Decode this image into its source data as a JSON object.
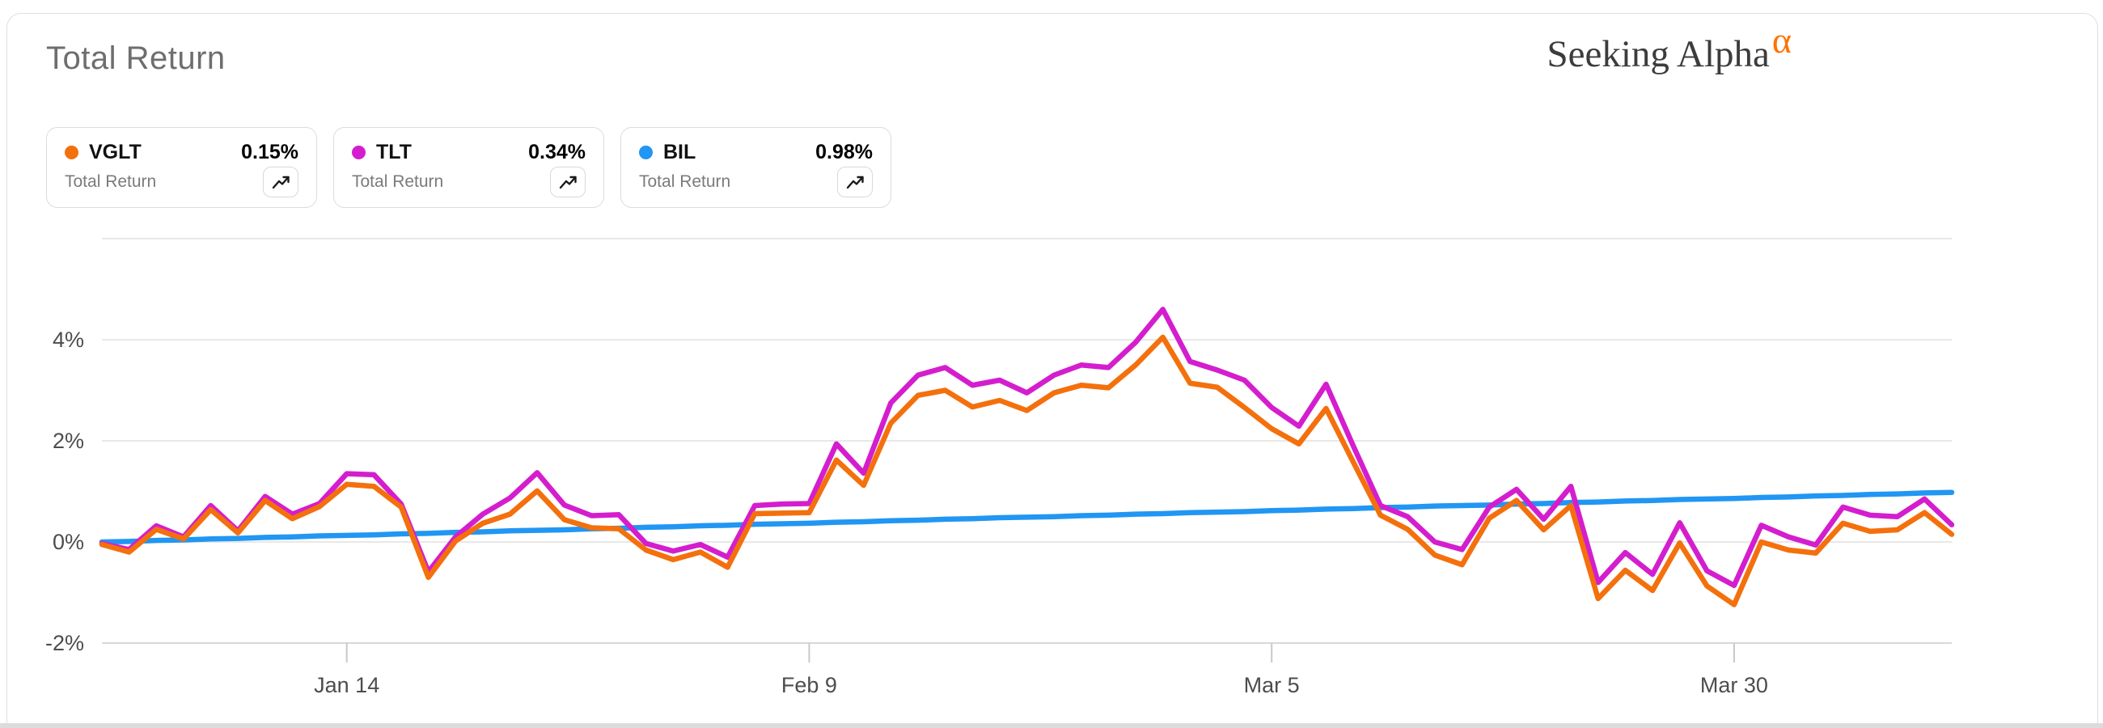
{
  "page": {
    "title": "Total Return"
  },
  "brand": {
    "name": "Seeking Alpha",
    "alpha_glyph": "α",
    "text_color": "#3c3c3c",
    "alpha_color": "#ff7200"
  },
  "legend": {
    "cards": [
      {
        "ticker": "VGLT",
        "value": "0.15%",
        "sublabel": "Total Return",
        "color": "#f4700d"
      },
      {
        "ticker": "TLT",
        "value": "0.34%",
        "sublabel": "Total Return",
        "color": "#d41ece"
      },
      {
        "ticker": "BIL",
        "value": "0.98%",
        "sublabel": "Total Return",
        "color": "#2196f3"
      }
    ]
  },
  "chart_data": {
    "type": "line",
    "title": "Total Return",
    "unit": "%",
    "legend_position": "top-left",
    "grid": true,
    "ylim": [
      -2.4,
      6
    ],
    "x_days": 68,
    "x_ticks": [
      {
        "label": "Jan 14",
        "day": 9
      },
      {
        "label": "Feb 9",
        "day": 26
      },
      {
        "label": "Mar 5",
        "day": 43
      },
      {
        "label": "Mar 30",
        "day": 60
      }
    ],
    "y_ticks": [
      {
        "label": "4%",
        "value": 4
      },
      {
        "label": "2%",
        "value": 2
      },
      {
        "label": "0%",
        "value": 0
      },
      {
        "label": "-2%",
        "value": -2
      }
    ],
    "grid_values": [
      6,
      4,
      2,
      0,
      -2
    ],
    "series": [
      {
        "name": "BIL",
        "color": "#2196f3",
        "final": 0.98,
        "values": [
          0,
          0.01,
          0.03,
          0.04,
          0.06,
          0.07,
          0.09,
          0.1,
          0.12,
          0.13,
          0.14,
          0.16,
          0.17,
          0.19,
          0.2,
          0.22,
          0.23,
          0.24,
          0.26,
          0.27,
          0.29,
          0.3,
          0.32,
          0.33,
          0.35,
          0.36,
          0.37,
          0.39,
          0.4,
          0.42,
          0.43,
          0.45,
          0.46,
          0.48,
          0.49,
          0.5,
          0.52,
          0.53,
          0.55,
          0.56,
          0.58,
          0.59,
          0.6,
          0.62,
          0.63,
          0.65,
          0.66,
          0.68,
          0.69,
          0.71,
          0.72,
          0.73,
          0.75,
          0.76,
          0.78,
          0.79,
          0.81,
          0.82,
          0.84,
          0.85,
          0.86,
          0.88,
          0.89,
          0.91,
          0.92,
          0.94,
          0.95,
          0.97,
          0.98
        ]
      },
      {
        "name": "TLT",
        "color": "#d41ece",
        "final": 0.34,
        "values": [
          -0.03,
          -0.15,
          0.32,
          0.1,
          0.72,
          0.22,
          0.9,
          0.55,
          0.76,
          1.35,
          1.33,
          0.75,
          -0.59,
          0.1,
          0.55,
          0.87,
          1.37,
          0.73,
          0.52,
          0.54,
          -0.03,
          -0.18,
          -0.05,
          -0.3,
          0.72,
          0.75,
          0.76,
          1.94,
          1.36,
          2.75,
          3.3,
          3.45,
          3.1,
          3.2,
          2.95,
          3.3,
          3.5,
          3.45,
          3.95,
          4.6,
          3.57,
          3.4,
          3.2,
          2.66,
          2.29,
          3.12,
          1.9,
          0.72,
          0.5,
          0,
          -0.15,
          0.69,
          1.04,
          0.45,
          1.1,
          -0.8,
          -0.21,
          -0.64,
          0.38,
          -0.57,
          -0.86,
          0.33,
          0.1,
          -0.06,
          0.69,
          0.53,
          0.5,
          0.85,
          0.34
        ]
      },
      {
        "name": "VGLT",
        "color": "#f4700d",
        "final": 0.15,
        "values": [
          -0.05,
          -0.2,
          0.25,
          0.06,
          0.64,
          0.18,
          0.82,
          0.46,
          0.7,
          1.14,
          1.1,
          0.69,
          -0.7,
          0.02,
          0.37,
          0.55,
          1.01,
          0.44,
          0.28,
          0.26,
          -0.16,
          -0.35,
          -0.2,
          -0.5,
          0.56,
          0.57,
          0.58,
          1.62,
          1.12,
          2.35,
          2.9,
          3,
          2.67,
          2.8,
          2.6,
          2.95,
          3.1,
          3.05,
          3.5,
          4.05,
          3.14,
          3.06,
          2.66,
          2.24,
          1.94,
          2.64,
          1.58,
          0.53,
          0.25,
          -0.26,
          -0.45,
          0.47,
          0.82,
          0.24,
          0.72,
          -1.12,
          -0.56,
          -0.96,
          -0.02,
          -0.87,
          -1.24,
          0,
          -0.16,
          -0.22,
          0.37,
          0.21,
          0.24,
          0.58,
          0.15
        ]
      }
    ]
  }
}
